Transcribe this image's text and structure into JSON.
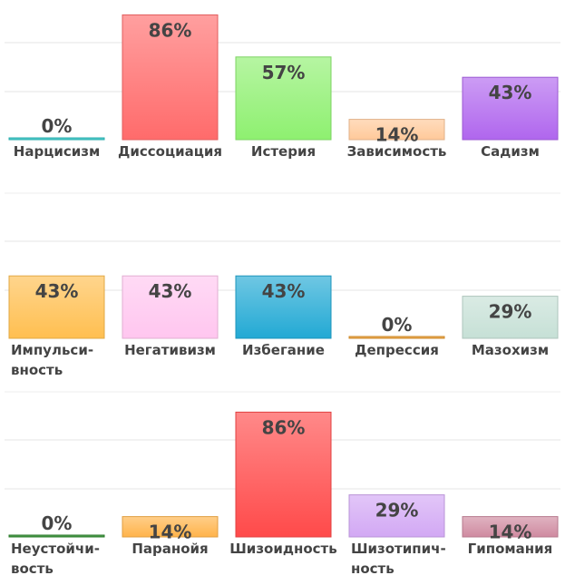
{
  "chart_data": [
    {
      "type": "bar",
      "categories": [
        "Нарцисизм",
        "Диссоциация",
        "Истерия",
        "Зависимость",
        "Садизм"
      ],
      "values": [
        0,
        86,
        57,
        14,
        43
      ],
      "value_labels": [
        "0%",
        "86%",
        "57%",
        "14%",
        "43%"
      ],
      "colors": [
        "#2ec4c4",
        "#ff6b6b",
        "#8ef070",
        "#ffc99a",
        "#b066ee"
      ],
      "ylim": [
        0,
        100
      ],
      "grid": true
    },
    {
      "type": "bar",
      "categories": [
        "Импульсивность",
        "Негативизм",
        "Избегание",
        "Депрессия",
        "Мазохизм"
      ],
      "category_lines": [
        [
          "Импульси-",
          "вность"
        ],
        [
          "Негативизм"
        ],
        [
          "Избегание"
        ],
        [
          "Депрессия"
        ],
        [
          "Мазохизм"
        ]
      ],
      "values": [
        43,
        43,
        43,
        0,
        29
      ],
      "value_labels": [
        "43%",
        "43%",
        "43%",
        "0%",
        "29%"
      ],
      "colors": [
        "#ffbf50",
        "#ffc6ef",
        "#22a9d4",
        "#e89a30",
        "#c6e0d6"
      ],
      "ylim": [
        0,
        100
      ],
      "grid": true
    },
    {
      "type": "bar",
      "categories": [
        "Неустойчивость",
        "Паранойя",
        "Шизоидность",
        "Шизотипичность",
        "Гипомания"
      ],
      "category_lines": [
        [
          "Неустойчи-",
          "вость"
        ],
        [
          "Паранойя"
        ],
        [
          "Шизоидность"
        ],
        [
          "Шизотипич-",
          "ность"
        ],
        [
          "Гипомания"
        ]
      ],
      "values": [
        0,
        14,
        86,
        29,
        14
      ],
      "value_labels": [
        "0%",
        "14%",
        "86%",
        "29%",
        "14%"
      ],
      "colors": [
        "#2e8b2e",
        "#ffb34a",
        "#ff4a4a",
        "#d2a8f4",
        "#cf8aa0"
      ],
      "ylim": [
        0,
        100
      ],
      "grid": true
    }
  ]
}
